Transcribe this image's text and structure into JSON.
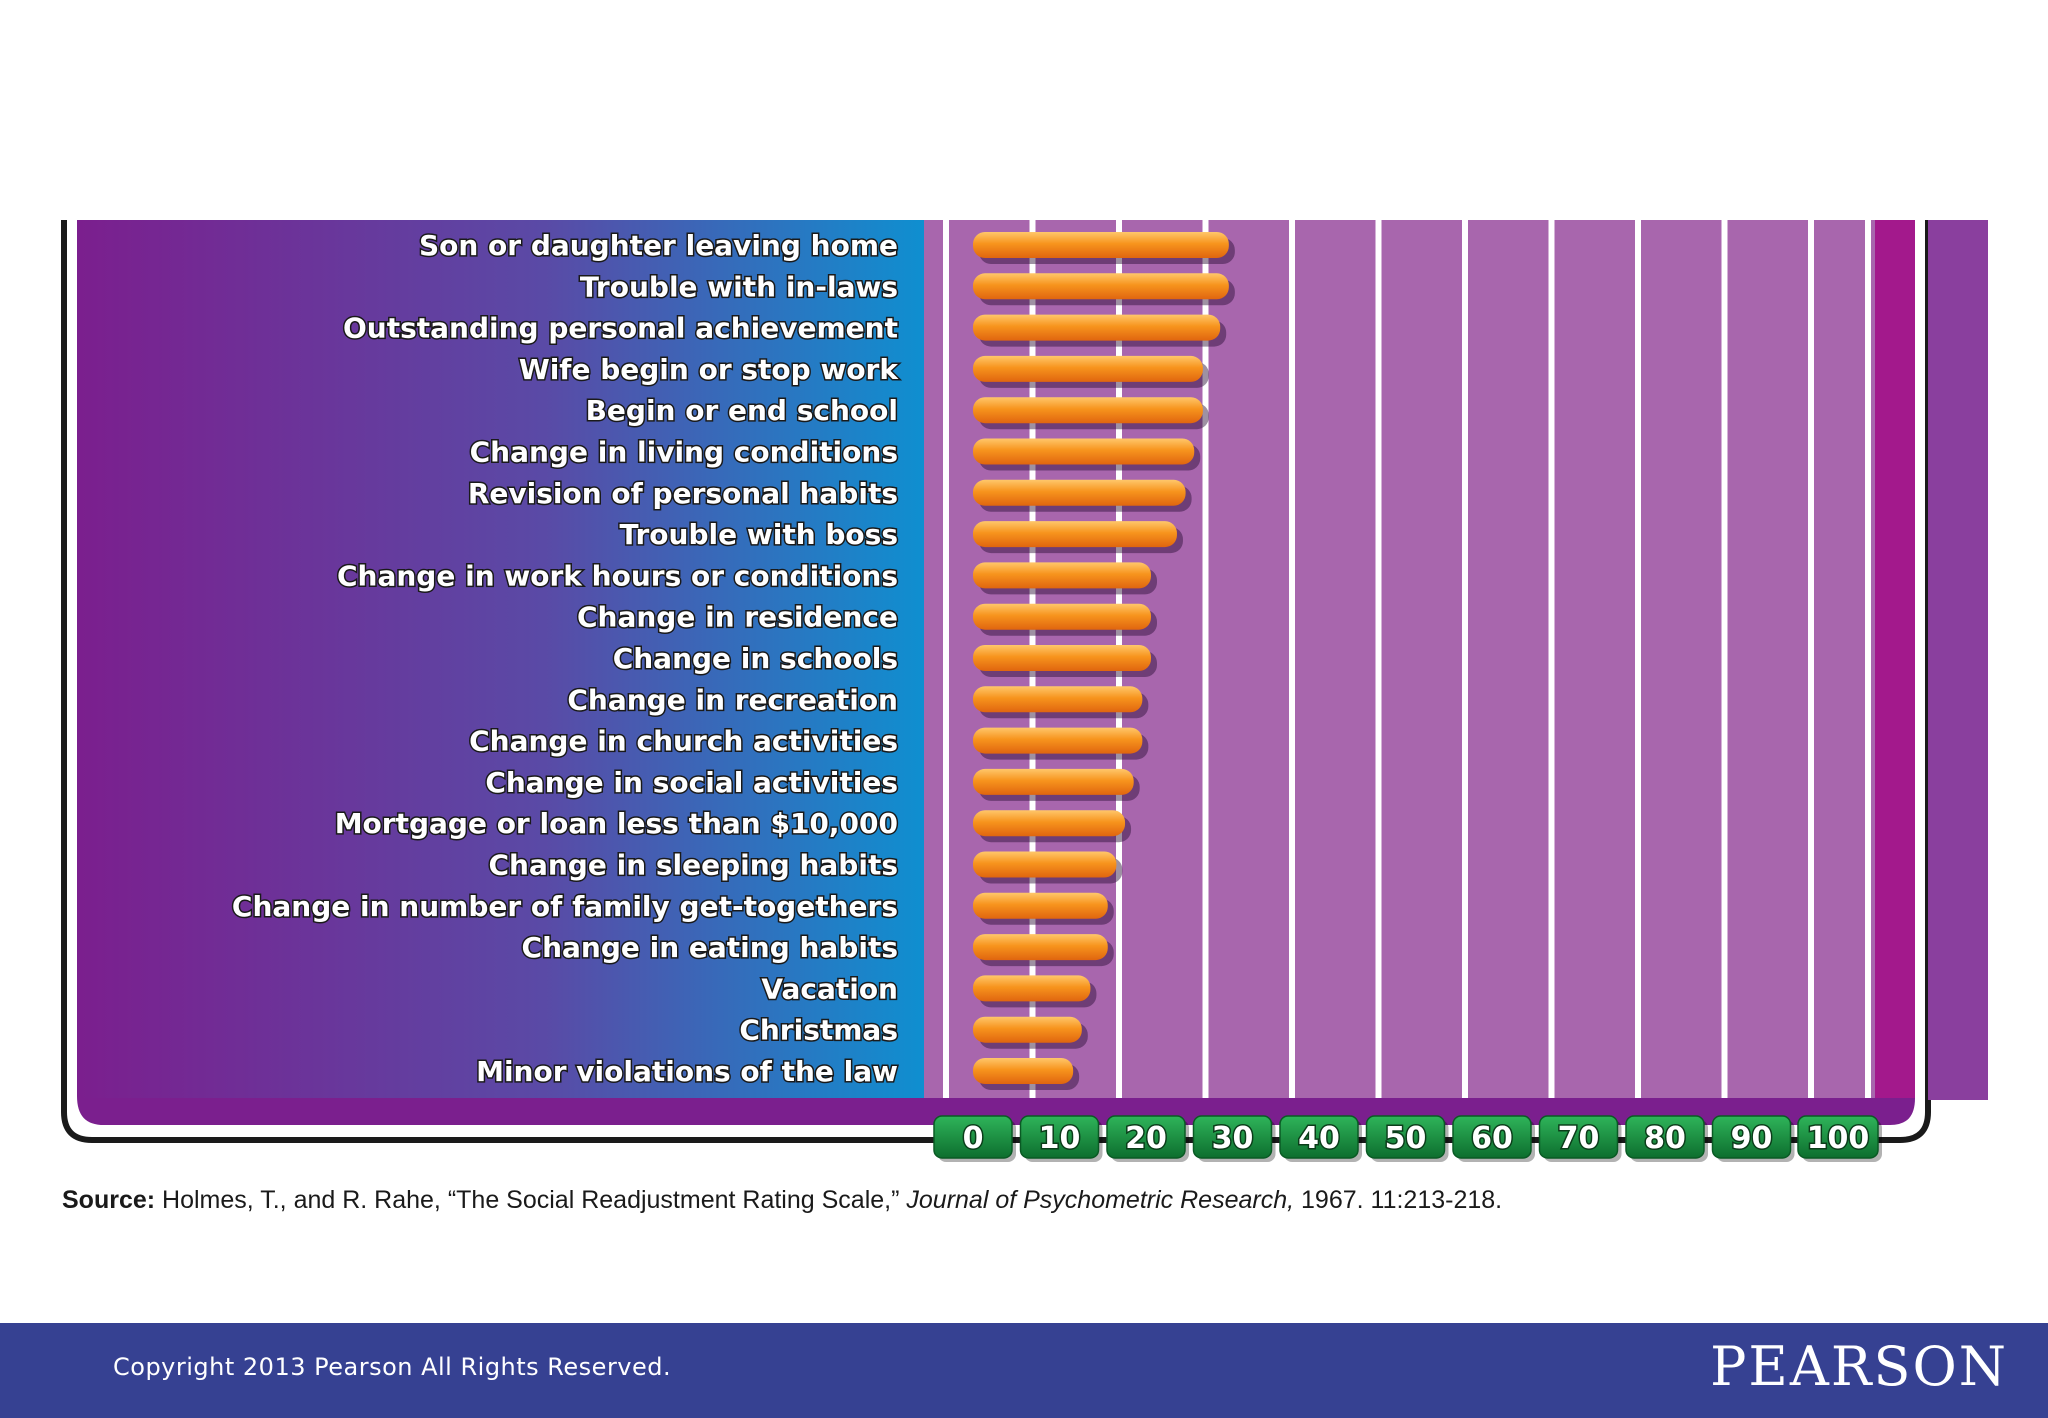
{
  "chart_data": {
    "type": "bar",
    "orientation": "horizontal",
    "categories": [
      "Son or daughter leaving home",
      "Trouble with in-laws",
      "Outstanding personal achievement",
      "Wife begin or stop work",
      "Begin or end school",
      "Change in living conditions",
      "Revision of personal habits",
      "Trouble with boss",
      "Change in work hours or conditions",
      "Change in residence",
      "Change in schools",
      "Change in recreation",
      "Change in church activities",
      "Change in social activities",
      "Mortgage or loan less than $10,000",
      "Change in sleeping habits",
      "Change in number of family get-togethers",
      "Change in eating habits",
      "Vacation",
      "Christmas",
      "Minor violations of the law"
    ],
    "values": [
      29,
      29,
      28,
      26,
      26,
      25,
      24,
      23,
      20,
      20,
      20,
      19,
      19,
      18,
      17,
      16,
      15,
      15,
      13,
      12,
      11
    ],
    "xticks": [
      "0",
      "10",
      "20",
      "30",
      "40",
      "50",
      "60",
      "70",
      "80",
      "90",
      "100"
    ],
    "xlim": [
      0,
      100
    ],
    "grid": true,
    "colors": {
      "bar": "#f7941d",
      "bar_highlight": "#ffc76b",
      "label_panel_left": "#7b1f8e",
      "label_panel_right": "#0f8fd0",
      "plot_background": "#a866ad",
      "tick_badge": "#138a3c"
    }
  },
  "source": {
    "label": "Source:",
    "text": "Holmes, T., and R. Rahe, “The Social Readjustment Rating Scale,”",
    "journal": "Journal of Psychometric Research,",
    "citation": "1967. 11:213-218."
  },
  "footer": {
    "copyright": "Copyright 2013  Pearson  All Rights Reserved.",
    "logo": "PEARSON"
  }
}
